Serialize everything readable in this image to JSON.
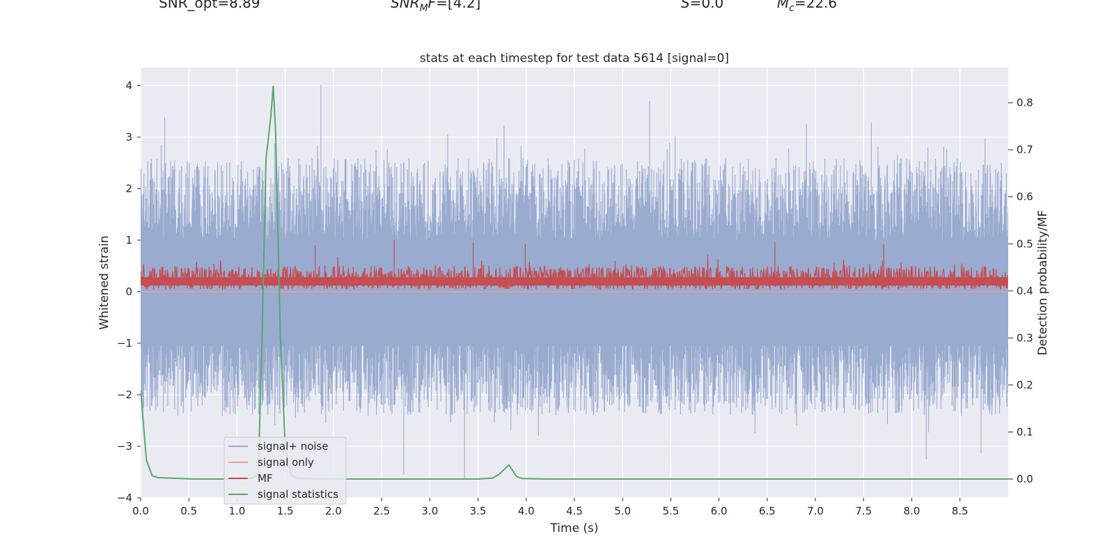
{
  "header": {
    "snr_opt": "SNR_opt=8.89",
    "snr_mf_sym": "SNR",
    "snr_mf_sub": "M",
    "snr_mf_f": "F",
    "snr_mf_value": "=[4.2]",
    "s_sym": "S",
    "s_value": "=0.0",
    "mc_sym": "M",
    "mc_sub": "c",
    "mc_value": "=22.6"
  },
  "chart_data": {
    "type": "line",
    "title": "stats at each timestep for test data 5614 [signal=0]",
    "xlabel": "Time (s)",
    "ylabel": "Whitened strain",
    "y2label": "Detection probability/MF",
    "xlim": [
      0.0,
      9.0
    ],
    "ylim": [
      -4.0,
      4.35
    ],
    "y2lim": [
      -0.04,
      0.875
    ],
    "xticks": [
      0.0,
      0.5,
      1.0,
      1.5,
      2.0,
      2.5,
      3.0,
      3.5,
      4.0,
      4.5,
      5.0,
      5.5,
      6.0,
      6.5,
      7.0,
      7.5,
      8.0,
      8.5
    ],
    "xtick_labels": [
      "0.0",
      "0.5",
      "1.0",
      "1.5",
      "2.0",
      "2.5",
      "3.0",
      "3.5",
      "4.0",
      "4.5",
      "5.0",
      "5.5",
      "6.0",
      "6.5",
      "7.0",
      "7.5",
      "8.0",
      "8.5"
    ],
    "yticks": [
      -4,
      -3,
      -2,
      -1,
      0,
      1,
      2,
      3,
      4
    ],
    "ytick_labels": [
      "−4",
      "−3",
      "−2",
      "−1",
      "0",
      "1",
      "2",
      "3",
      "4"
    ],
    "y2ticks": [
      0.0,
      0.1,
      0.2,
      0.3,
      0.4,
      0.5,
      0.6,
      0.7,
      0.8
    ],
    "y2tick_labels": [
      "0.0",
      "0.1",
      "0.2",
      "0.3",
      "0.4",
      "0.5",
      "0.6",
      "0.7",
      "0.8"
    ],
    "legend": {
      "placement": "lower-left",
      "entries": [
        "signal+ noise",
        "signal only",
        "MF",
        "signal statistics"
      ]
    },
    "colors": {
      "signal_noise": "#9aabd0",
      "signal_only": "#e8a386",
      "mf": "#c44e52",
      "signal_statistics": "#55a868",
      "plot_bg": "#eaeaf2",
      "grid": "#ffffff"
    },
    "series": [
      {
        "name": "signal+ noise",
        "axis": "left",
        "kind": "noise_band",
        "upper_envelope_approx": [
          1.7,
          1.0
        ],
        "lower_envelope_approx": [
          -1.2,
          -2.0
        ],
        "peaks": [
          [
            0.25,
            3.38
          ],
          [
            1.87,
            4.02
          ],
          [
            5.28,
            3.7
          ],
          [
            7.58,
            3.28
          ],
          [
            3.36,
            -3.62
          ],
          [
            2.73,
            -3.55
          ],
          [
            8.15,
            -3.25
          ]
        ]
      },
      {
        "name": "signal only",
        "axis": "left",
        "x": [
          0.0,
          9.0
        ],
        "y": [
          0.0,
          0.0
        ]
      },
      {
        "name": "MF",
        "axis": "left",
        "kind": "noise_band",
        "base": 0.05,
        "typical_max": 0.5,
        "peaks": [
          [
            2.63,
            1.0
          ],
          [
            3.45,
            0.95
          ],
          [
            3.99,
            0.92
          ],
          [
            6.58,
            0.96
          ],
          [
            1.81,
            0.9
          ],
          [
            7.71,
            0.92
          ]
        ]
      },
      {
        "name": "signal statistics",
        "axis": "right",
        "x": [
          0.0,
          0.06,
          0.12,
          0.18,
          0.3,
          0.42,
          0.55,
          0.7,
          0.85,
          1.0,
          1.1,
          1.16,
          1.22,
          1.26,
          1.3,
          1.35,
          1.375,
          1.4,
          1.45,
          1.5,
          1.56,
          1.62,
          1.8,
          2.5,
          3.0,
          3.5,
          3.65,
          3.72,
          3.82,
          3.9,
          3.96,
          4.2,
          5.0,
          6.0,
          7.0,
          8.0,
          9.0
        ],
        "y": [
          0.19,
          0.04,
          0.007,
          0.003,
          0.002,
          0.001,
          0.0,
          0.0,
          0.0,
          0.0,
          0.0,
          0.002,
          0.01,
          0.3,
          0.68,
          0.77,
          0.835,
          0.74,
          0.3,
          0.07,
          0.008,
          0.002,
          0.0,
          0.0,
          0.0,
          0.0,
          0.002,
          0.01,
          0.03,
          0.005,
          0.001,
          0.0,
          0.0,
          0.0,
          0.0,
          0.0,
          0.0
        ]
      }
    ]
  }
}
